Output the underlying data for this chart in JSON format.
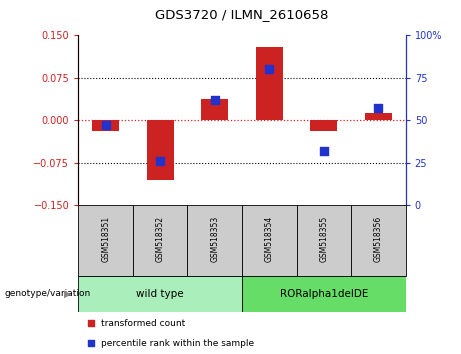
{
  "title": "GDS3720 / ILMN_2610658",
  "samples": [
    "GSM518351",
    "GSM518352",
    "GSM518353",
    "GSM518354",
    "GSM518355",
    "GSM518356"
  ],
  "red_values": [
    -0.018,
    -0.105,
    0.038,
    0.13,
    -0.018,
    0.013
  ],
  "blue_values_pct": [
    47,
    26,
    62,
    80,
    32,
    57
  ],
  "ylim_left": [
    -0.15,
    0.15
  ],
  "ylim_right": [
    0,
    100
  ],
  "yticks_left": [
    -0.15,
    -0.075,
    0,
    0.075,
    0.15
  ],
  "yticks_right": [
    0,
    25,
    50,
    75,
    100
  ],
  "red_color": "#cc2222",
  "blue_color": "#2233cc",
  "bar_width": 0.5,
  "dot_size": 40,
  "group1_label": "wild type",
  "group2_label": "RORalpha1delDE",
  "group1_indices": [
    0,
    1,
    2
  ],
  "group2_indices": [
    3,
    4,
    5
  ],
  "group1_color": "#aaeebb",
  "group2_color": "#66dd66",
  "genotype_label": "genotype/variation",
  "legend_red": "transformed count",
  "legend_blue": "percentile rank within the sample",
  "background_label": "#cccccc"
}
